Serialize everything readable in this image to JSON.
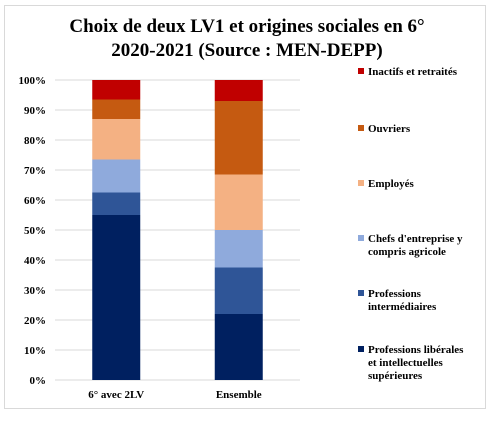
{
  "chart_data": {
    "type": "bar",
    "stacked": true,
    "title": "Choix de deux LV1 et origines sociales en 6°",
    "subtitle": "2020-2021 (Source : MEN-DEPP)",
    "categories": [
      "6° avec 2LV",
      "Ensemble"
    ],
    "ylim": [
      0,
      100
    ],
    "yticks": [
      "0%",
      "10%",
      "20%",
      "30%",
      "40%",
      "50%",
      "60%",
      "70%",
      "80%",
      "90%",
      "100%"
    ],
    "grid": true,
    "legend_position": "right",
    "series": [
      {
        "name": "Professions libérales et intellectuelles supérieures",
        "color": "#002060",
        "values": [
          55,
          22
        ]
      },
      {
        "name": "Professions intermédiaires",
        "color": "#2F5597",
        "values": [
          7.5,
          15.5
        ]
      },
      {
        "name": "Chefs d'entreprise y compris agricole",
        "color": "#8FAADC",
        "values": [
          11,
          12.5
        ]
      },
      {
        "name": "Employés",
        "color": "#F4B183",
        "values": [
          13.5,
          18.5
        ]
      },
      {
        "name": "Ouvriers",
        "color": "#C55A11",
        "values": [
          6.5,
          24.5
        ]
      },
      {
        "name": "Inactifs et retraités",
        "color": "#C00000",
        "values": [
          6.5,
          7
        ]
      }
    ],
    "legend_labels": [
      [
        "Inactifs et retraités"
      ],
      [
        "Ouvriers"
      ],
      [
        "Employés"
      ],
      [
        "Chefs d'entreprise y",
        "compris agricole"
      ],
      [
        "Professions",
        "intermédiaires"
      ],
      [
        "Professions libérales",
        "et intellectuelles",
        "supérieures"
      ]
    ]
  }
}
